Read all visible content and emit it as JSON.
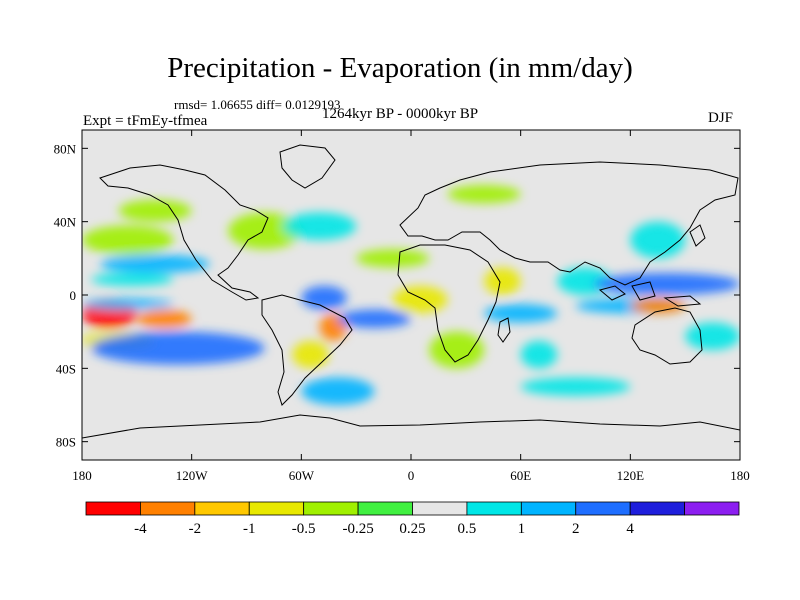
{
  "figure": {
    "title": "Precipitation - Evaporation (in mm/day)",
    "stats": "rmsd= 1.06655 diff= 0.0129193",
    "period": "1264kyr BP - 0000kyr BP",
    "experiment": "Expt = tFmEy-tfmea",
    "season": "DJF"
  },
  "axes": {
    "lon_ticks": [
      {
        "value": -180,
        "label": "180"
      },
      {
        "value": -120,
        "label": "120W"
      },
      {
        "value": -60,
        "label": "60W"
      },
      {
        "value": 0,
        "label": "0"
      },
      {
        "value": 60,
        "label": "60E"
      },
      {
        "value": 120,
        "label": "120E"
      },
      {
        "value": 180,
        "label": "180"
      }
    ],
    "lat_ticks": [
      {
        "value": 80,
        "label": "80N"
      },
      {
        "value": 40,
        "label": "40N"
      },
      {
        "value": 0,
        "label": "0"
      },
      {
        "value": -40,
        "label": "40S"
      },
      {
        "value": -80,
        "label": "80S"
      }
    ],
    "lon_range": [
      -180,
      180
    ],
    "lat_range": [
      -90,
      90
    ]
  },
  "colorbar": {
    "colors": [
      "#ff0000",
      "#ff8000",
      "#ffc800",
      "#e8e800",
      "#a0f000",
      "#40f040",
      "#e6e6e6",
      "#00e6e6",
      "#00b4ff",
      "#1e6eff",
      "#1e1edc",
      "#8c1ef0"
    ],
    "labels": [
      "-4",
      "-2",
      "-1",
      "-0.5",
      "-0.25",
      "0.25",
      "0.5",
      "1",
      "2",
      "4"
    ]
  },
  "chart_data": {
    "type": "heatmap",
    "title": "Precipitation - Evaporation (in mm/day)",
    "units": "mm/day",
    "levels": [
      -4,
      -2,
      -1,
      -0.5,
      -0.25,
      0.25,
      0.5,
      1,
      2,
      4
    ],
    "background_color": "#e6e6e6",
    "regions": [
      {
        "lon": [
          -180,
          -150
        ],
        "lat": [
          -18,
          -2
        ],
        "value": -5
      },
      {
        "lon": [
          -150,
          -120
        ],
        "lat": [
          -18,
          -8
        ],
        "value": -3
      },
      {
        "lon": [
          -180,
          -140
        ],
        "lat": [
          -30,
          -20
        ],
        "value": -0.7
      },
      {
        "lon": [
          -180,
          -130
        ],
        "lat": [
          -8,
          -2
        ],
        "value": 1.5
      },
      {
        "lon": [
          -175,
          -80
        ],
        "lat": [
          -38,
          -20
        ],
        "value": 3
      },
      {
        "lon": [
          -170,
          -110
        ],
        "lat": [
          12,
          22
        ],
        "value": 1.5
      },
      {
        "lon": [
          -175,
          -130
        ],
        "lat": [
          5,
          12
        ],
        "value": 0.7
      },
      {
        "lon": [
          -180,
          -130
        ],
        "lat": [
          22,
          38
        ],
        "value": -0.4
      },
      {
        "lon": [
          -160,
          -120
        ],
        "lat": [
          40,
          52
        ],
        "value": -0.3
      },
      {
        "lon": [
          -100,
          -60
        ],
        "lat": [
          25,
          45
        ],
        "value": -0.3
      },
      {
        "lon": [
          -70,
          -30
        ],
        "lat": [
          30,
          45
        ],
        "value": 0.7
      },
      {
        "lon": [
          -60,
          -35
        ],
        "lat": [
          -8,
          5
        ],
        "value": 3
      },
      {
        "lon": [
          -50,
          -35
        ],
        "lat": [
          -25,
          -10
        ],
        "value": -3
      },
      {
        "lon": [
          -65,
          -45
        ],
        "lat": [
          -40,
          -25
        ],
        "value": -0.7
      },
      {
        "lon": [
          -40,
          0
        ],
        "lat": [
          -18,
          -8
        ],
        "value": 3
      },
      {
        "lon": [
          -30,
          10
        ],
        "lat": [
          15,
          25
        ],
        "value": -0.4
      },
      {
        "lon": [
          -10,
          20
        ],
        "lat": [
          -10,
          5
        ],
        "value": -0.7
      },
      {
        "lon": [
          10,
          40
        ],
        "lat": [
          -40,
          -20
        ],
        "value": -0.3
      },
      {
        "lon": [
          40,
          80
        ],
        "lat": [
          -15,
          -5
        ],
        "value": 1.5
      },
      {
        "lon": [
          40,
          60
        ],
        "lat": [
          0,
          15
        ],
        "value": -0.7
      },
      {
        "lon": [
          60,
          80
        ],
        "lat": [
          -40,
          -25
        ],
        "value": 0.7
      },
      {
        "lon": [
          80,
          110
        ],
        "lat": [
          0,
          15
        ],
        "value": 0.7
      },
      {
        "lon": [
          100,
          180
        ],
        "lat": [
          0,
          12
        ],
        "value": 3
      },
      {
        "lon": [
          90,
          150
        ],
        "lat": [
          -10,
          -2
        ],
        "value": 1.5
      },
      {
        "lon": [
          120,
          150
        ],
        "lat": [
          -10,
          -2
        ],
        "value": -3
      },
      {
        "lon": [
          120,
          150
        ],
        "lat": [
          20,
          40
        ],
        "value": 0.7
      },
      {
        "lon": [
          150,
          180
        ],
        "lat": [
          -30,
          -15
        ],
        "value": 0.7
      },
      {
        "lon": [
          20,
          60
        ],
        "lat": [
          50,
          60
        ],
        "value": -0.3
      },
      {
        "lon": [
          -60,
          -20
        ],
        "lat": [
          -60,
          -45
        ],
        "value": 1.5
      },
      {
        "lon": [
          60,
          120
        ],
        "lat": [
          -55,
          -45
        ],
        "value": 0.7
      }
    ]
  }
}
